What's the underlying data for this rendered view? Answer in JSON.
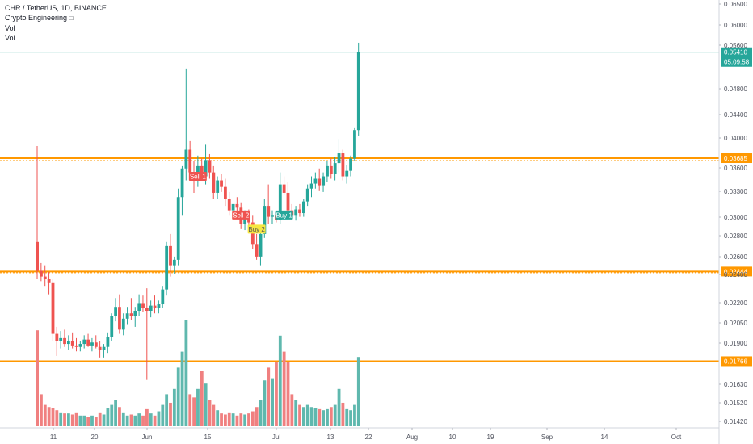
{
  "legend": {
    "title": "CHR / TetherUS, 1D, BINANCE",
    "indicator": "Crypto Engineering",
    "vol1": "Vol",
    "vol2": "Vol"
  },
  "colors": {
    "up": "#26a69a",
    "down": "#ef5350",
    "vol_up": "#5fb8ae",
    "vol_down": "#f08080",
    "level": "#ff9800",
    "last_price_line": "#26a69a",
    "sell_signal": "#ef5350",
    "buy_signal": "#26a69a",
    "buy2_signal": "#f5e642"
  },
  "chart_data": {
    "type": "candlestick",
    "symbol": "CHR / TetherUS",
    "timeframe": "1D",
    "exchange": "BINANCE",
    "y_scale": "log",
    "ylim": [
      0.0142,
      0.065
    ],
    "x_tick_labels": [
      "11",
      "20",
      "Jun",
      "15",
      "Jul",
      "13",
      "22",
      "Aug",
      "10",
      "19",
      "Sep",
      "14",
      "Oct"
    ],
    "y_tick_labels": [
      "0.06500",
      "0.06000",
      "0.05600",
      "0.04800",
      "0.04400",
      "0.04000",
      "0.03600",
      "0.03300",
      "0.03000",
      "0.02800",
      "0.02600",
      "0.02400",
      "0.02200",
      "0.02050",
      "0.01900",
      "0.01630",
      "0.01520",
      "0.01420"
    ],
    "last_price": "0.05410",
    "countdown": "05:09:58",
    "horizontal_levels": [
      "0.03685",
      "0.02444",
      "0.01766"
    ],
    "candles": [
      {
        "o": 0.0272,
        "h": 0.0385,
        "l": 0.0238,
        "c": 0.0245,
        "v": 0.9
      },
      {
        "o": 0.0245,
        "h": 0.0252,
        "l": 0.0236,
        "c": 0.024,
        "v": 0.3
      },
      {
        "o": 0.024,
        "h": 0.025,
        "l": 0.0232,
        "c": 0.0238,
        "v": 0.2
      },
      {
        "o": 0.0238,
        "h": 0.0244,
        "l": 0.0225,
        "c": 0.0235,
        "v": 0.18
      },
      {
        "o": 0.0235,
        "h": 0.0238,
        "l": 0.019,
        "c": 0.0195,
        "v": 0.17
      },
      {
        "o": 0.0195,
        "h": 0.02,
        "l": 0.018,
        "c": 0.019,
        "v": 0.15
      },
      {
        "o": 0.019,
        "h": 0.0197,
        "l": 0.0185,
        "c": 0.0192,
        "v": 0.13
      },
      {
        "o": 0.0192,
        "h": 0.0198,
        "l": 0.0186,
        "c": 0.0188,
        "v": 0.12
      },
      {
        "o": 0.0188,
        "h": 0.0194,
        "l": 0.0184,
        "c": 0.019,
        "v": 0.12
      },
      {
        "o": 0.019,
        "h": 0.0196,
        "l": 0.0185,
        "c": 0.0187,
        "v": 0.11
      },
      {
        "o": 0.0187,
        "h": 0.0192,
        "l": 0.0183,
        "c": 0.0186,
        "v": 0.13
      },
      {
        "o": 0.0186,
        "h": 0.019,
        "l": 0.0183,
        "c": 0.0188,
        "v": 0.1
      },
      {
        "o": 0.0188,
        "h": 0.0194,
        "l": 0.0185,
        "c": 0.0191,
        "v": 0.1
      },
      {
        "o": 0.0191,
        "h": 0.0195,
        "l": 0.0186,
        "c": 0.0187,
        "v": 0.09
      },
      {
        "o": 0.0187,
        "h": 0.0192,
        "l": 0.0183,
        "c": 0.0189,
        "v": 0.1
      },
      {
        "o": 0.0189,
        "h": 0.0194,
        "l": 0.0185,
        "c": 0.0186,
        "v": 0.09
      },
      {
        "o": 0.0186,
        "h": 0.019,
        "l": 0.0179,
        "c": 0.0184,
        "v": 0.13
      },
      {
        "o": 0.0184,
        "h": 0.0188,
        "l": 0.0179,
        "c": 0.0186,
        "v": 0.11
      },
      {
        "o": 0.0186,
        "h": 0.0196,
        "l": 0.0182,
        "c": 0.0193,
        "v": 0.17
      },
      {
        "o": 0.0193,
        "h": 0.021,
        "l": 0.019,
        "c": 0.0208,
        "v": 0.2
      },
      {
        "o": 0.0208,
        "h": 0.0222,
        "l": 0.0204,
        "c": 0.0215,
        "v": 0.25
      },
      {
        "o": 0.0215,
        "h": 0.0225,
        "l": 0.0195,
        "c": 0.0198,
        "v": 0.18
      },
      {
        "o": 0.0198,
        "h": 0.021,
        "l": 0.0194,
        "c": 0.0206,
        "v": 0.13
      },
      {
        "o": 0.0206,
        "h": 0.0215,
        "l": 0.0202,
        "c": 0.021,
        "v": 0.1
      },
      {
        "o": 0.021,
        "h": 0.0222,
        "l": 0.0205,
        "c": 0.0208,
        "v": 0.11
      },
      {
        "o": 0.0208,
        "h": 0.0215,
        "l": 0.02,
        "c": 0.0212,
        "v": 0.1
      },
      {
        "o": 0.0212,
        "h": 0.0225,
        "l": 0.0208,
        "c": 0.0218,
        "v": 0.12
      },
      {
        "o": 0.0218,
        "h": 0.0224,
        "l": 0.0211,
        "c": 0.0214,
        "v": 0.1
      },
      {
        "o": 0.0214,
        "h": 0.023,
        "l": 0.0165,
        "c": 0.0212,
        "v": 0.16
      },
      {
        "o": 0.0212,
        "h": 0.022,
        "l": 0.0207,
        "c": 0.0216,
        "v": 0.12
      },
      {
        "o": 0.0216,
        "h": 0.0224,
        "l": 0.021,
        "c": 0.0214,
        "v": 0.1
      },
      {
        "o": 0.0214,
        "h": 0.022,
        "l": 0.021,
        "c": 0.0217,
        "v": 0.14
      },
      {
        "o": 0.0217,
        "h": 0.0232,
        "l": 0.0214,
        "c": 0.0229,
        "v": 0.2
      },
      {
        "o": 0.0229,
        "h": 0.0272,
        "l": 0.0224,
        "c": 0.0268,
        "v": 0.3
      },
      {
        "o": 0.0268,
        "h": 0.028,
        "l": 0.024,
        "c": 0.025,
        "v": 0.22
      },
      {
        "o": 0.025,
        "h": 0.0258,
        "l": 0.0242,
        "c": 0.0255,
        "v": 0.35
      },
      {
        "o": 0.0255,
        "h": 0.033,
        "l": 0.025,
        "c": 0.032,
        "v": 0.55
      },
      {
        "o": 0.032,
        "h": 0.0358,
        "l": 0.03,
        "c": 0.0355,
        "v": 0.7
      },
      {
        "o": 0.0355,
        "h": 0.051,
        "l": 0.034,
        "c": 0.038,
        "v": 1.0
      },
      {
        "o": 0.038,
        "h": 0.0392,
        "l": 0.0345,
        "c": 0.035,
        "v": 0.3
      },
      {
        "o": 0.035,
        "h": 0.0365,
        "l": 0.0325,
        "c": 0.034,
        "v": 0.27
      },
      {
        "o": 0.034,
        "h": 0.0372,
        "l": 0.0332,
        "c": 0.0358,
        "v": 0.35
      },
      {
        "o": 0.0358,
        "h": 0.0368,
        "l": 0.034,
        "c": 0.0345,
        "v": 0.52
      },
      {
        "o": 0.0345,
        "h": 0.0388,
        "l": 0.0335,
        "c": 0.0366,
        "v": 0.4
      },
      {
        "o": 0.0366,
        "h": 0.0374,
        "l": 0.0342,
        "c": 0.035,
        "v": 0.25
      },
      {
        "o": 0.035,
        "h": 0.0358,
        "l": 0.0318,
        "c": 0.0325,
        "v": 0.2
      },
      {
        "o": 0.0325,
        "h": 0.0345,
        "l": 0.0318,
        "c": 0.034,
        "v": 0.15
      },
      {
        "o": 0.034,
        "h": 0.0348,
        "l": 0.0326,
        "c": 0.0332,
        "v": 0.12
      },
      {
        "o": 0.0332,
        "h": 0.0342,
        "l": 0.031,
        "c": 0.0318,
        "v": 0.11
      },
      {
        "o": 0.0318,
        "h": 0.0326,
        "l": 0.03,
        "c": 0.0305,
        "v": 0.13
      },
      {
        "o": 0.0305,
        "h": 0.0318,
        "l": 0.0296,
        "c": 0.0312,
        "v": 0.12
      },
      {
        "o": 0.0312,
        "h": 0.032,
        "l": 0.0304,
        "c": 0.0308,
        "v": 0.1
      },
      {
        "o": 0.0308,
        "h": 0.0314,
        "l": 0.0285,
        "c": 0.029,
        "v": 0.12
      },
      {
        "o": 0.029,
        "h": 0.0305,
        "l": 0.0284,
        "c": 0.03,
        "v": 0.11
      },
      {
        "o": 0.03,
        "h": 0.0306,
        "l": 0.0288,
        "c": 0.0292,
        "v": 0.12
      },
      {
        "o": 0.0292,
        "h": 0.03,
        "l": 0.0265,
        "c": 0.027,
        "v": 0.14
      },
      {
        "o": 0.027,
        "h": 0.028,
        "l": 0.0255,
        "c": 0.0258,
        "v": 0.18
      },
      {
        "o": 0.0258,
        "h": 0.0286,
        "l": 0.025,
        "c": 0.028,
        "v": 0.25
      },
      {
        "o": 0.028,
        "h": 0.0318,
        "l": 0.0276,
        "c": 0.031,
        "v": 0.43
      },
      {
        "o": 0.031,
        "h": 0.0335,
        "l": 0.029,
        "c": 0.0298,
        "v": 0.55
      },
      {
        "o": 0.0298,
        "h": 0.0305,
        "l": 0.029,
        "c": 0.03,
        "v": 0.45
      },
      {
        "o": 0.03,
        "h": 0.0304,
        "l": 0.0292,
        "c": 0.0295,
        "v": 0.6
      },
      {
        "o": 0.0295,
        "h": 0.035,
        "l": 0.029,
        "c": 0.0335,
        "v": 0.85
      },
      {
        "o": 0.0335,
        "h": 0.0345,
        "l": 0.0322,
        "c": 0.0325,
        "v": 0.7
      },
      {
        "o": 0.0325,
        "h": 0.0338,
        "l": 0.03,
        "c": 0.0305,
        "v": 0.6
      },
      {
        "o": 0.0305,
        "h": 0.0312,
        "l": 0.0295,
        "c": 0.03,
        "v": 0.3
      },
      {
        "o": 0.03,
        "h": 0.031,
        "l": 0.0294,
        "c": 0.0306,
        "v": 0.25
      },
      {
        "o": 0.0306,
        "h": 0.0312,
        "l": 0.0298,
        "c": 0.0302,
        "v": 0.2
      },
      {
        "o": 0.0302,
        "h": 0.0318,
        "l": 0.0298,
        "c": 0.0315,
        "v": 0.18
      },
      {
        "o": 0.0315,
        "h": 0.0335,
        "l": 0.031,
        "c": 0.033,
        "v": 0.2
      },
      {
        "o": 0.033,
        "h": 0.0345,
        "l": 0.032,
        "c": 0.0336,
        "v": 0.18
      },
      {
        "o": 0.0336,
        "h": 0.035,
        "l": 0.033,
        "c": 0.0342,
        "v": 0.17
      },
      {
        "o": 0.0342,
        "h": 0.0355,
        "l": 0.0328,
        "c": 0.0334,
        "v": 0.16
      },
      {
        "o": 0.0334,
        "h": 0.035,
        "l": 0.0326,
        "c": 0.0345,
        "v": 0.15
      },
      {
        "o": 0.0345,
        "h": 0.0365,
        "l": 0.0338,
        "c": 0.0358,
        "v": 0.16
      },
      {
        "o": 0.0358,
        "h": 0.0368,
        "l": 0.0342,
        "c": 0.0348,
        "v": 0.18
      },
      {
        "o": 0.0348,
        "h": 0.037,
        "l": 0.034,
        "c": 0.0362,
        "v": 0.2
      },
      {
        "o": 0.0362,
        "h": 0.0395,
        "l": 0.035,
        "c": 0.0375,
        "v": 0.35
      },
      {
        "o": 0.0375,
        "h": 0.038,
        "l": 0.034,
        "c": 0.0345,
        "v": 0.22
      },
      {
        "o": 0.0345,
        "h": 0.036,
        "l": 0.0336,
        "c": 0.0352,
        "v": 0.16
      },
      {
        "o": 0.0352,
        "h": 0.0372,
        "l": 0.0345,
        "c": 0.0368,
        "v": 0.15
      },
      {
        "o": 0.0368,
        "h": 0.0412,
        "l": 0.0365,
        "c": 0.0408,
        "v": 0.2
      },
      {
        "o": 0.0408,
        "h": 0.056,
        "l": 0.04,
        "c": 0.0541,
        "v": 0.65
      }
    ],
    "signals": [
      {
        "label": "Sell 1",
        "candle": 41,
        "price": 0.0345,
        "type": "sell"
      },
      {
        "label": "Sell 2",
        "candle": 52,
        "price": 0.03,
        "type": "sell"
      },
      {
        "label": "Buy 2",
        "candle": 56,
        "price": 0.0285,
        "type": "buy2"
      },
      {
        "label": "Buy 1",
        "candle": 63,
        "price": 0.03,
        "type": "buy"
      }
    ]
  }
}
